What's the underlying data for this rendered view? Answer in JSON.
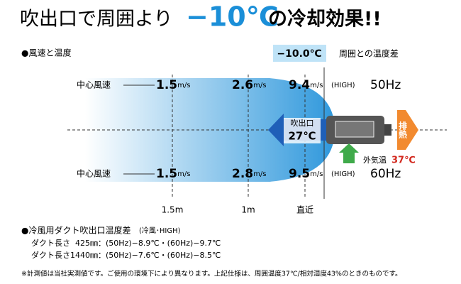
{
  "header": {
    "lead": "吹出口で周囲より",
    "highlight": "−10℃",
    "tail": "の冷却効果!!"
  },
  "wind": {
    "heading": "●風速と温度",
    "badge": "−10.0℃",
    "badge_caption": "周囲との温度差",
    "top": {
      "label": "中心風速",
      "speeds": [
        {
          "value": "1.5",
          "unit": "m/s"
        },
        {
          "value": "2.6",
          "unit": "m/s"
        },
        {
          "value": "9.4",
          "unit": "m/s"
        }
      ],
      "mode": "(HIGH)",
      "freq": "50Hz"
    },
    "bottom": {
      "label": "中心風速",
      "speeds": [
        {
          "value": "1.5",
          "unit": "m/s"
        },
        {
          "value": "2.8",
          "unit": "m/s"
        },
        {
          "value": "9.5",
          "unit": "m/s"
        }
      ],
      "mode": "(HIGH)",
      "freq": "60Hz"
    },
    "outlet": {
      "label": "吹出口",
      "temp": "27℃"
    },
    "exhaust": "排熱",
    "outside": {
      "label": "外気温",
      "temp": "37℃"
    },
    "distances": [
      "1.5m",
      "1m",
      "直近"
    ]
  },
  "duct": {
    "heading": "●冷風用ダクト吹出口温度差",
    "note": "(冷風･HIGH)",
    "rows": [
      "ダクト長さ  425㎜：(50Hz)−8.9℃・(60Hz)−9.7℃",
      "ダクト長さ1440㎜：(50Hz)−7.6℃・(60Hz)−8.5℃"
    ]
  },
  "footnote": "※計測値は当社実測値です。ご使用の環境下により異なります。上記仕様は、周囲温度37℃/相対湿度43%のときのものです。"
}
